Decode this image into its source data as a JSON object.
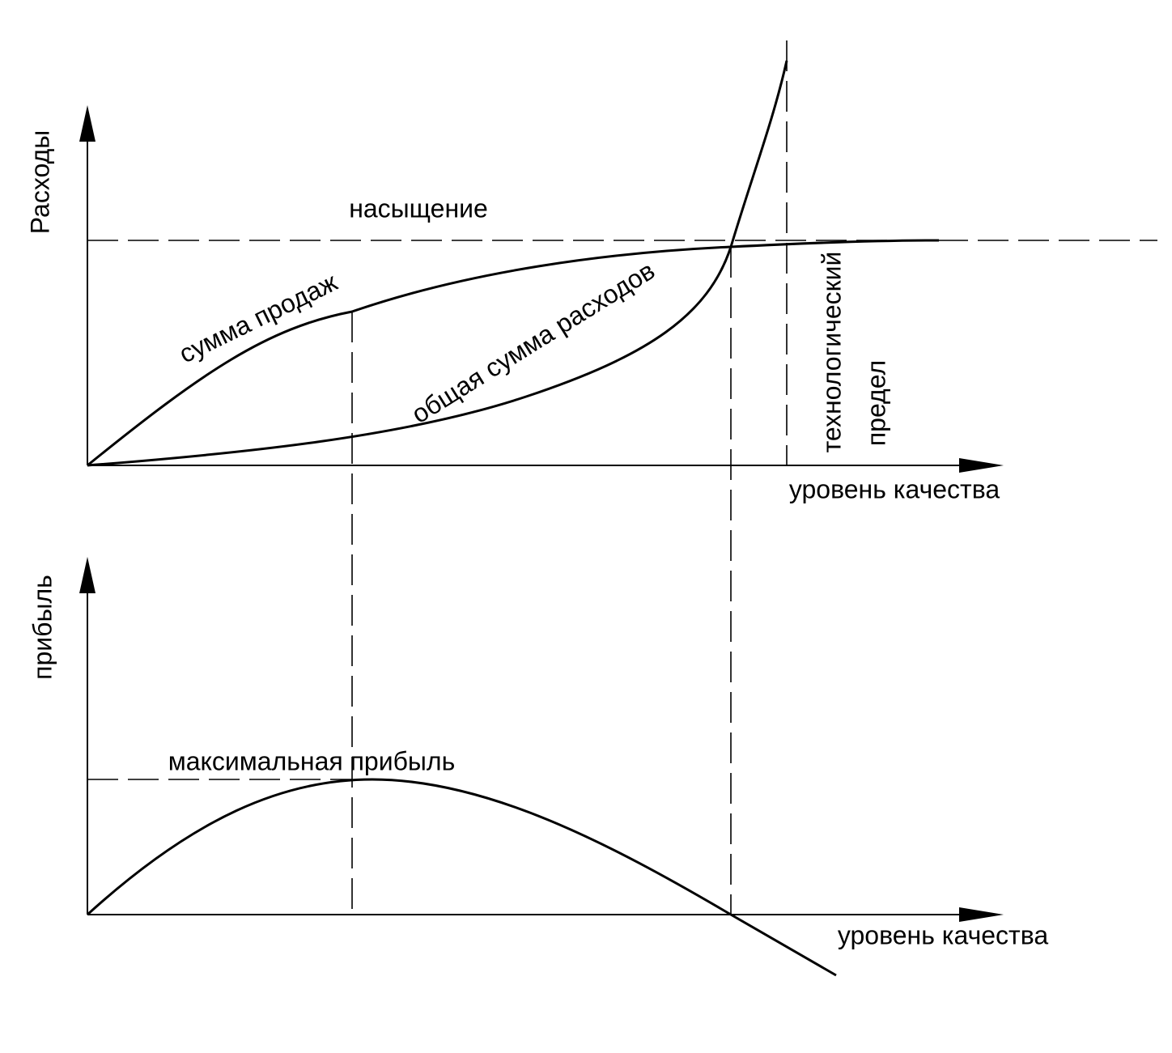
{
  "top_chart": {
    "y_label": "Расходы",
    "x_label": "уровень качества",
    "saturation_label": "насыщение",
    "sales_label": "сумма продаж",
    "costs_label": "общая сумма расходов",
    "limit_label_line1": "технологический",
    "limit_label_line2": "предел"
  },
  "bottom_chart": {
    "y_label": "прибыль",
    "x_label": "уровень качества",
    "max_label": "максимальная прибыль"
  }
}
